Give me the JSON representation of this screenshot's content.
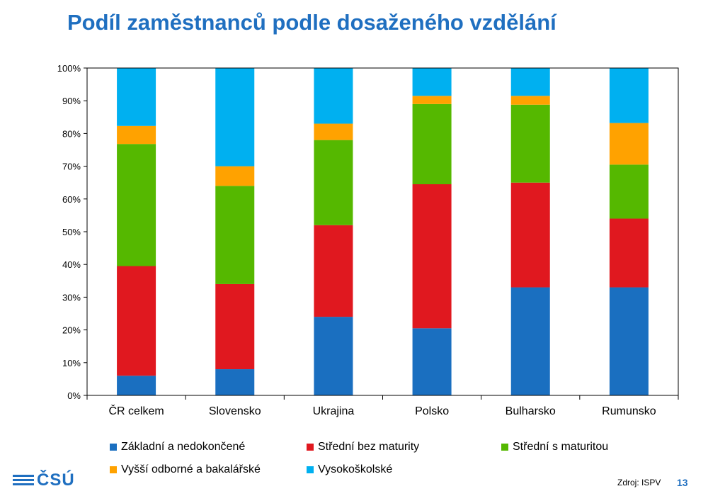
{
  "title": "Podíl zaměstnanců podle dosaženého vzdělání",
  "source": "Zdroj: ISPV",
  "page_number": "13",
  "logo_text": "ČSÚ",
  "chart_data": {
    "type": "bar",
    "stacked": true,
    "categories": [
      "ČR celkem",
      "Slovensko",
      "Ukrajina",
      "Polsko",
      "Bulharsko",
      "Rumunsko"
    ],
    "y_ticks": [
      "0%",
      "10%",
      "20%",
      "30%",
      "40%",
      "50%",
      "60%",
      "70%",
      "80%",
      "90%",
      "100%"
    ],
    "ylim": [
      0,
      100
    ],
    "grid": false,
    "legend_position": "bottom",
    "series": [
      {
        "name": "Základní a nedokončené",
        "color": "#1a6fc0",
        "values": [
          6,
          8,
          24,
          20.5,
          33,
          33
        ]
      },
      {
        "name": "Střední bez maturity",
        "color": "#e0181f",
        "values": [
          33.5,
          26,
          28,
          44,
          32,
          21
        ]
      },
      {
        "name": "Střední s maturitou",
        "color": "#55b800",
        "values": [
          37.3,
          30,
          26,
          24.5,
          23.8,
          16.5
        ]
      },
      {
        "name": "Vyšší odborné a bakalářské",
        "color": "#ffa200",
        "values": [
          5.5,
          6,
          5,
          2.5,
          2.7,
          12.7
        ]
      },
      {
        "name": "Vysokoškolské",
        "color": "#00b0f0",
        "values": [
          17.7,
          30,
          17,
          8.5,
          8.5,
          16.8
        ]
      }
    ]
  }
}
